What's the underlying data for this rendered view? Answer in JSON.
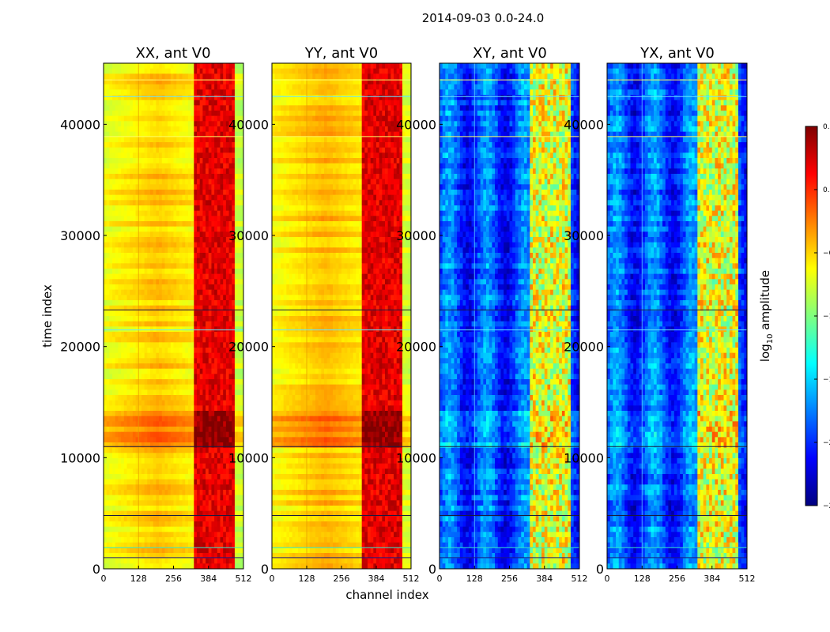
{
  "chart_data": {
    "type": "heatmap",
    "suptitle": "2014-09-03 0.0-24.0",
    "xlabel": "channel index",
    "ylabel": "time index",
    "xlim": [
      0,
      512
    ],
    "ylim": [
      0,
      45500
    ],
    "x_ticks": [
      "0",
      "128",
      "256",
      "384",
      "512"
    ],
    "y_ticks": [
      "0",
      "10000",
      "20000",
      "30000",
      "40000"
    ],
    "y_tick_values": [
      0,
      10000,
      20000,
      30000,
      40000
    ],
    "panels": [
      {
        "title": "XX, ant V0",
        "kind": "autocorrelation",
        "base_level_log10": -0.45,
        "bright_band_log10": 0.2
      },
      {
        "title": "YY, ant V0",
        "kind": "autocorrelation",
        "base_level_log10": -0.4,
        "bright_band_log10": 0.2
      },
      {
        "title": "XY, ant V0",
        "kind": "crosscorrelation",
        "base_level_log10": -1.9,
        "bright_band_log10": -0.7
      },
      {
        "title": "YX, ant V0",
        "kind": "crosscorrelation",
        "base_level_log10": -1.9,
        "bright_band_log10": -0.7
      }
    ],
    "features": {
      "bright_channel_range": [
        330,
        480
      ],
      "bright_time_band": [
        11000,
        14200
      ],
      "rfi_channel": 128
    },
    "colorbar": {
      "label": "log10 amplitude",
      "label_main": "log",
      "label_sub": "10",
      "label_rest": " amplitude",
      "range": [
        -2.5,
        0.5
      ],
      "ticks": [
        "0.5",
        "0.0",
        "−0.5",
        "−1.0",
        "−1.5",
        "−2.0",
        "−2.5"
      ],
      "tick_values": [
        0.5,
        0.0,
        -0.5,
        -1.0,
        -1.5,
        -2.0,
        -2.5
      ],
      "colormap": "jet",
      "colormap_stops": [
        "#00007f",
        "#0000ff",
        "#007fff",
        "#00ffff",
        "#7fff7f",
        "#ffff00",
        "#ff7f00",
        "#ff0000",
        "#7f0000"
      ]
    }
  }
}
